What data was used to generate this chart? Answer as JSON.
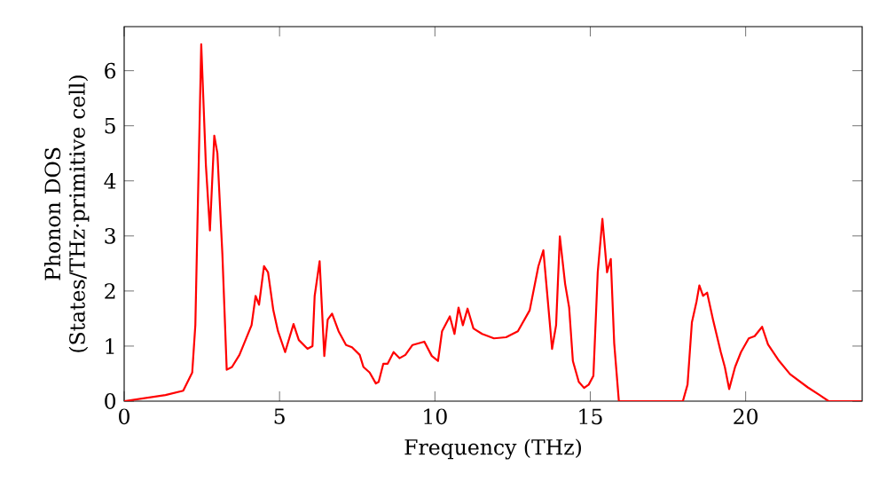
{
  "chart_data": {
    "type": "line",
    "xlabel": "Frequency (THz)",
    "ylabel": "Phonon DOS (States/THz·primitive cell)",
    "xlim": [
      0,
      23.75
    ],
    "ylim": [
      0,
      6.8
    ],
    "xticks": [
      0,
      5,
      10,
      15,
      20
    ],
    "yticks": [
      0,
      1,
      2,
      3,
      4,
      5,
      6
    ],
    "grid": false,
    "marker": "none",
    "line_style": "solid",
    "series": [
      {
        "color": "#ff0000",
        "x": [
          0,
          1.33,
          1.9,
          2.19,
          2.29,
          2.48,
          2.63,
          2.76,
          2.9,
          3.0,
          3.16,
          3.3,
          3.47,
          3.71,
          4.1,
          4.23,
          4.34,
          4.5,
          4.63,
          4.8,
          4.95,
          5.18,
          5.45,
          5.62,
          5.9,
          6.06,
          6.13,
          6.29,
          6.44,
          6.55,
          6.69,
          6.9,
          7.14,
          7.33,
          7.58,
          7.7,
          7.9,
          8.1,
          8.19,
          8.34,
          8.48,
          8.67,
          8.86,
          9.05,
          9.28,
          9.66,
          9.9,
          10.1,
          10.23,
          10.48,
          10.63,
          10.76,
          10.9,
          11.05,
          11.24,
          11.52,
          11.9,
          12.29,
          12.67,
          13.05,
          13.33,
          13.49,
          13.77,
          13.9,
          14.02,
          14.19,
          14.32,
          14.44,
          14.63,
          14.8,
          14.95,
          15.1,
          15.24,
          15.39,
          15.54,
          15.66,
          15.77,
          15.92,
          17.98,
          18.13,
          18.27,
          18.42,
          18.51,
          18.63,
          18.76,
          18.95,
          19.2,
          19.33,
          19.47,
          19.66,
          19.85,
          20.1,
          20.29,
          20.53,
          20.72,
          21.05,
          21.43,
          22.0,
          22.38,
          22.67,
          23.73
        ],
        "values": [
          0,
          0.11,
          0.19,
          0.52,
          1.38,
          6.48,
          4.28,
          3.1,
          4.82,
          4.5,
          2.67,
          0.57,
          0.62,
          0.84,
          1.38,
          1.91,
          1.75,
          2.45,
          2.34,
          1.65,
          1.27,
          0.89,
          1.4,
          1.11,
          0.95,
          1.0,
          1.91,
          2.54,
          0.82,
          1.48,
          1.59,
          1.27,
          1.02,
          0.98,
          0.84,
          0.62,
          0.52,
          0.32,
          0.35,
          0.68,
          0.68,
          0.89,
          0.78,
          0.84,
          1.02,
          1.08,
          0.82,
          0.73,
          1.27,
          1.54,
          1.22,
          1.7,
          1.38,
          1.68,
          1.32,
          1.22,
          1.14,
          1.16,
          1.27,
          1.65,
          2.45,
          2.74,
          0.95,
          1.38,
          2.99,
          2.13,
          1.7,
          0.73,
          0.35,
          0.24,
          0.3,
          0.46,
          2.34,
          3.31,
          2.34,
          2.58,
          1.05,
          0,
          0,
          0.3,
          1.43,
          1.81,
          2.1,
          1.91,
          1.97,
          1.48,
          0.89,
          0.62,
          0.22,
          0.62,
          0.89,
          1.14,
          1.18,
          1.35,
          1.03,
          0.75,
          0.49,
          0.25,
          0.11,
          0,
          0
        ]
      }
    ]
  }
}
